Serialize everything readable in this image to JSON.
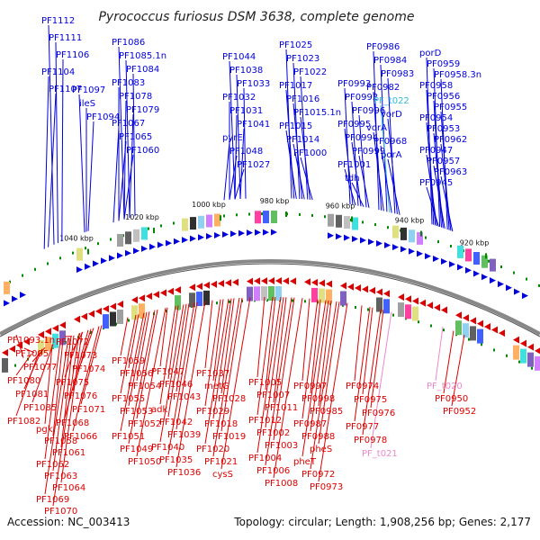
{
  "title": "Pyrococcus furiosus DSM 3638, complete genome",
  "footer": {
    "accession": "Accession: NC_003413",
    "summary": "Topology: circular; Length: 1,908,256 bp; Genes: 2,177"
  },
  "colors": {
    "forward": "#0000dd",
    "reverse": "#dd0000",
    "trna_forward": "#33bbdd",
    "trna_reverse": "#ee88cc",
    "backbone": "#888888",
    "tick": "#008800"
  },
  "ticks": [
    "1040 kbp",
    "1020 kbp",
    "1000 kbp",
    "980 kbp",
    "960 kbp",
    "940 kbp",
    "920 kbp"
  ],
  "forward_labels": [
    "PF1112",
    "PF1111",
    "PF1106",
    "PF1104",
    "PF1107",
    "PF1097",
    "ileS",
    "PF1094",
    "PF1086",
    "PF1085.1n",
    "PF1084",
    "PF1083",
    "PF1078",
    "PF1079",
    "PF1067",
    "PF1065",
    "PF1060",
    "PF1044",
    "PF1038",
    "PF1033",
    "PF1032",
    "PF1031",
    "PF1041",
    "pyrE",
    "PF1048",
    "PF1027",
    "PF1025",
    "PF1023",
    "PF1022",
    "PF1017",
    "PF1016",
    "PF1015.1n",
    "PF1015",
    "PF1014",
    "PF1000",
    "PF0993",
    "PF0992",
    "PF0996",
    "PF0995",
    "PF0994",
    "PF0999",
    "PF1001",
    "tdh",
    "PF0986",
    "PF0984",
    "PF0983",
    "PF0982",
    "PF_t022",
    "vorD",
    "vorA",
    "PF0968",
    "porA",
    "porD",
    "PF0959",
    "PF0958.3n",
    "PF0958",
    "PF0956",
    "PF0955",
    "PF0954",
    "PF0953",
    "PF0962",
    "PF0947",
    "PF0957",
    "PF0963",
    "PF0945"
  ],
  "reverse_labels": [
    "PF1093.1n",
    "PF1095",
    "PF1077",
    "PF1080",
    "PF1081",
    "PF1085",
    "PF1082",
    "PF1072",
    "PF1073",
    "PF1074",
    "PF1075",
    "PF1076",
    "PF1071",
    "PF1068",
    "PF1066",
    "pgk",
    "PF1058",
    "PF1061",
    "PF1062",
    "PF1063",
    "PF1064",
    "PF1069",
    "PF1070",
    "PF1059",
    "PF1056",
    "PF1054",
    "PF1055",
    "PF1053",
    "PF1052",
    "PF1051",
    "PF1049",
    "PF1050",
    "PF1047",
    "PF1046",
    "PF1043",
    "adk",
    "PF1042",
    "PF1039",
    "PF1040",
    "PF1035",
    "PF1036",
    "PF1037",
    "metG",
    "PF1028",
    "PF1029",
    "PF1018",
    "PF1019",
    "PF1020",
    "PF1021",
    "cysS",
    "PF1005",
    "PF1007",
    "PF1011",
    "PF1012",
    "PF1002",
    "PF1003",
    "PF1004",
    "PF1006",
    "PF1008",
    "PF0997",
    "PF0998",
    "PF0985",
    "PF0987",
    "PF0988",
    "pheS",
    "pheT",
    "PF0972",
    "PF0973",
    "PF0974",
    "PF0975",
    "PF0976",
    "PF0977",
    "PF0978",
    "PF_t021",
    "PF_t020",
    "PF0950",
    "PF0952"
  ]
}
